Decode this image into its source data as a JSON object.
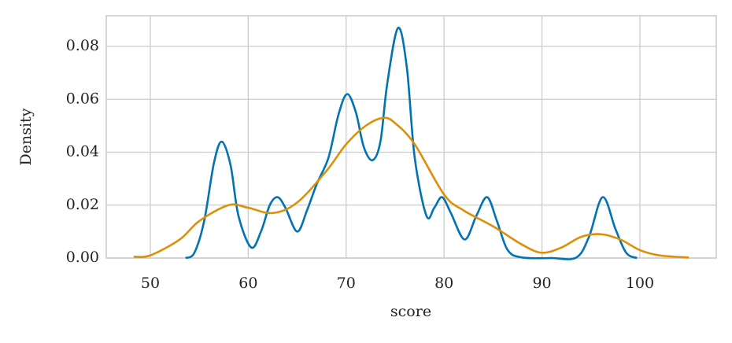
{
  "chart_data": {
    "type": "line",
    "xlabel": "score",
    "ylabel": "Density",
    "xlim": [
      45.5,
      107.8
    ],
    "ylim": [
      0,
      0.0916
    ],
    "xticks": [
      50,
      60,
      70,
      80,
      90,
      100
    ],
    "yticks": [
      {
        "value": 0,
        "label": "0.00"
      },
      {
        "value": 0.02,
        "label": "0.02"
      },
      {
        "value": 0.04,
        "label": "0.04"
      },
      {
        "value": 0.06,
        "label": "0.06"
      },
      {
        "value": 0.08,
        "label": "0.08"
      }
    ],
    "grid": true,
    "series": [
      {
        "color": "#0173b2",
        "x": [
          53.6,
          54.5,
          55.5,
          56.5,
          57.3,
          58.2,
          59,
          60.3,
          61.3,
          62.2,
          63,
          63.8,
          65,
          66,
          67,
          68.2,
          69.2,
          70.1,
          71,
          71.8,
          72.7,
          73.5,
          74.2,
          75.3,
          76.2,
          77,
          78.2,
          79,
          79.8,
          80.7,
          82.1,
          83.3,
          84.4,
          85.4,
          86.5,
          88,
          91,
          93.5,
          94.8,
          96.2,
          97.5,
          98.6,
          99.7
        ],
        "values": [
          0,
          0.002,
          0.014,
          0.036,
          0.044,
          0.035,
          0.016,
          0.004,
          0.01,
          0.02,
          0.023,
          0.019,
          0.01,
          0.018,
          0.028,
          0.038,
          0.054,
          0.062,
          0.055,
          0.042,
          0.037,
          0.044,
          0.066,
          0.087,
          0.072,
          0.038,
          0.016,
          0.019,
          0.023,
          0.017,
          0.007,
          0.016,
          0.023,
          0.014,
          0.003,
          0.0002,
          0,
          0.0002,
          0.008,
          0.023,
          0.011,
          0.002,
          0
        ]
      },
      {
        "color": "#de8f05",
        "x": [
          48.3,
          50,
          53,
          55,
          58,
          60,
          62.5,
          65,
          68,
          70,
          72,
          73.8,
          75,
          77,
          80,
          82,
          85,
          88,
          90,
          92,
          94,
          96,
          98,
          100,
          102,
          105
        ],
        "values": [
          0.0005,
          0.001,
          0.007,
          0.014,
          0.02,
          0.019,
          0.017,
          0.021,
          0.033,
          0.043,
          0.05,
          0.053,
          0.051,
          0.043,
          0.024,
          0.018,
          0.012,
          0.005,
          0.002,
          0.004,
          0.008,
          0.009,
          0.007,
          0.003,
          0.001,
          0.0002
        ]
      }
    ]
  }
}
